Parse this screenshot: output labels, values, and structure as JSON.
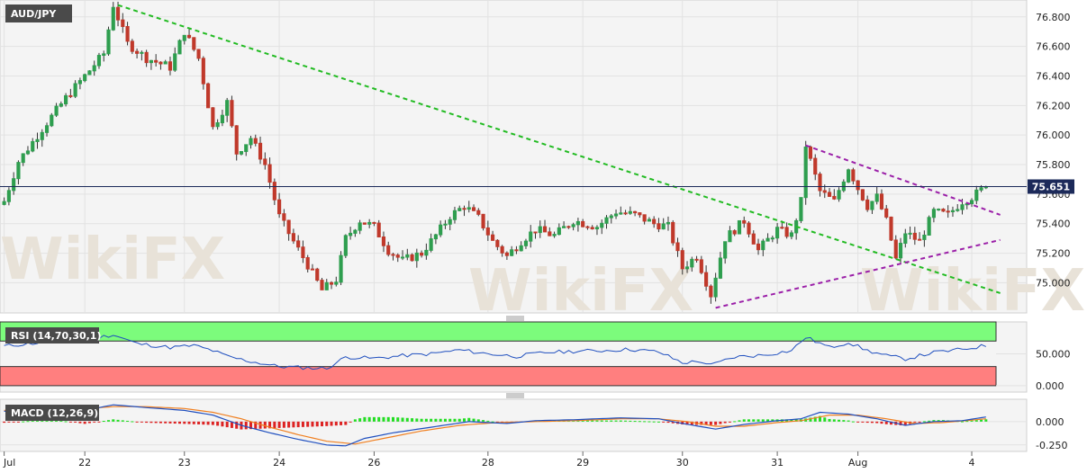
{
  "colors": {
    "bull": "#2e9e4f",
    "bear": "#c0392b",
    "trend_down": "#22bb22",
    "triangle": "#9b1fa8",
    "price_line": "#1c2a5a",
    "rsi_line": "#1f4fbf",
    "rsi_overbought": "#7cfc7c",
    "rsi_oversold": "#ff7f7f",
    "macd_line": "#1f4fbf",
    "signal_line": "#f07f1f",
    "hist_pos": "#22dd22",
    "hist_neg": "#dd2222",
    "label_bg": "#4a4a4a"
  },
  "watermark": "WikiFX",
  "chart_data": [
    {
      "type": "candlestick",
      "title": "AUD/JPY",
      "last_price_label": "75.651",
      "last_price": 75.651,
      "ylim": [
        74.82,
        76.89
      ],
      "yticks": [
        75.0,
        75.2,
        75.4,
        75.6,
        75.8,
        76.0,
        76.2,
        76.4,
        76.6,
        76.8
      ],
      "ytick_labels": [
        "75.000",
        "75.200",
        "75.400",
        "75.600",
        "75.800",
        "76.000",
        "76.200",
        "76.400",
        "76.600",
        "76.800"
      ],
      "x_labels": [
        "Jul",
        "22",
        "23",
        "24",
        "26",
        "28",
        "29",
        "30",
        "31",
        "Aug",
        "4"
      ],
      "x_label_bars": [
        0,
        17,
        38,
        58,
        78,
        102,
        122,
        143,
        163,
        180,
        204
      ],
      "bars_total": 210,
      "ohlc_anchors": [
        [
          0,
          75.55
        ],
        [
          3,
          75.82
        ],
        [
          8,
          76.04
        ],
        [
          13,
          76.25
        ],
        [
          17,
          76.4
        ],
        [
          21,
          76.55
        ],
        [
          23,
          76.88
        ],
        [
          26,
          76.62
        ],
        [
          30,
          76.52
        ],
        [
          35,
          76.46
        ],
        [
          38,
          76.7
        ],
        [
          41,
          76.52
        ],
        [
          44,
          76.05
        ],
        [
          47,
          76.22
        ],
        [
          49,
          75.88
        ],
        [
          52,
          75.98
        ],
        [
          55,
          75.8
        ],
        [
          58,
          75.45
        ],
        [
          61,
          75.28
        ],
        [
          64,
          75.12
        ],
        [
          67,
          74.95
        ],
        [
          70,
          75.02
        ],
        [
          72,
          75.3
        ],
        [
          75,
          75.42
        ],
        [
          78,
          75.38
        ],
        [
          81,
          75.22
        ],
        [
          84,
          75.15
        ],
        [
          88,
          75.2
        ],
        [
          91,
          75.32
        ],
        [
          94,
          75.45
        ],
        [
          97,
          75.52
        ],
        [
          100,
          75.44
        ],
        [
          103,
          75.28
        ],
        [
          106,
          75.18
        ],
        [
          109,
          75.28
        ],
        [
          112,
          75.36
        ],
        [
          116,
          75.32
        ],
        [
          120,
          75.42
        ],
        [
          125,
          75.38
        ],
        [
          129,
          75.48
        ],
        [
          133,
          75.46
        ],
        [
          137,
          75.4
        ],
        [
          140,
          75.38
        ],
        [
          143,
          75.1
        ],
        [
          146,
          75.18
        ],
        [
          149,
          74.92
        ],
        [
          152,
          75.3
        ],
        [
          156,
          75.42
        ],
        [
          159,
          75.22
        ],
        [
          163,
          75.36
        ],
        [
          166,
          75.32
        ],
        [
          168,
          75.55
        ],
        [
          169,
          75.93
        ],
        [
          172,
          75.62
        ],
        [
          175,
          75.55
        ],
        [
          178,
          75.78
        ],
        [
          180,
          75.64
        ],
        [
          182,
          75.52
        ],
        [
          184,
          75.58
        ],
        [
          186,
          75.42
        ],
        [
          188,
          75.16
        ],
        [
          190,
          75.34
        ],
        [
          193,
          75.28
        ],
        [
          196,
          75.48
        ],
        [
          199,
          75.46
        ],
        [
          202,
          75.55
        ],
        [
          204,
          75.58
        ],
        [
          207,
          75.651
        ]
      ],
      "trendlines": [
        {
          "name": "downtrend",
          "style": "green-dashed",
          "points": [
            [
              24,
              76.88
            ],
            [
              210,
              74.93
            ]
          ]
        },
        {
          "name": "triangle-upper",
          "style": "purple-dashed",
          "points": [
            [
              169,
              75.93
            ],
            [
              210,
              75.46
            ]
          ]
        },
        {
          "name": "triangle-lower",
          "style": "purple-dashed",
          "points": [
            [
              150,
              74.83
            ],
            [
              210,
              75.29
            ]
          ]
        }
      ]
    },
    {
      "type": "line",
      "title": "RSI (14,70,30,1)",
      "ylim": [
        -10,
        100
      ],
      "yticks": [
        0,
        50
      ],
      "ytick_labels": [
        "0.000",
        "50.000"
      ],
      "overbought": 70,
      "oversold": 30,
      "anchors": [
        [
          0,
          62
        ],
        [
          8,
          68
        ],
        [
          17,
          72
        ],
        [
          23,
          80
        ],
        [
          28,
          66
        ],
        [
          35,
          60
        ],
        [
          40,
          63
        ],
        [
          44,
          55
        ],
        [
          47,
          46
        ],
        [
          52,
          38
        ],
        [
          58,
          30
        ],
        [
          64,
          28
        ],
        [
          68,
          27
        ],
        [
          72,
          45
        ],
        [
          78,
          43
        ],
        [
          84,
          47
        ],
        [
          90,
          50
        ],
        [
          96,
          56
        ],
        [
          102,
          50
        ],
        [
          108,
          46
        ],
        [
          114,
          52
        ],
        [
          120,
          54
        ],
        [
          126,
          55
        ],
        [
          132,
          57
        ],
        [
          138,
          53
        ],
        [
          143,
          36
        ],
        [
          147,
          38
        ],
        [
          149,
          32
        ],
        [
          154,
          45
        ],
        [
          160,
          48
        ],
        [
          166,
          55
        ],
        [
          169,
          76
        ],
        [
          174,
          60
        ],
        [
          178,
          68
        ],
        [
          182,
          55
        ],
        [
          186,
          47
        ],
        [
          190,
          42
        ],
        [
          196,
          52
        ],
        [
          202,
          57
        ],
        [
          207,
          63
        ]
      ]
    },
    {
      "type": "line",
      "title": "MACD (12,26,9)",
      "ylim": [
        -0.3,
        0.22
      ],
      "yticks": [
        0,
        -0.25
      ],
      "ytick_labels": [
        "0.000",
        "-0.250"
      ],
      "macd_anchors": [
        [
          0,
          0.11
        ],
        [
          10,
          0.15
        ],
        [
          17,
          0.12
        ],
        [
          23,
          0.18
        ],
        [
          30,
          0.15
        ],
        [
          38,
          0.12
        ],
        [
          44,
          0.07
        ],
        [
          50,
          -0.04
        ],
        [
          56,
          -0.12
        ],
        [
          62,
          -0.19
        ],
        [
          68,
          -0.25
        ],
        [
          72,
          -0.26
        ],
        [
          76,
          -0.18
        ],
        [
          82,
          -0.12
        ],
        [
          90,
          -0.06
        ],
        [
          98,
          0.0
        ],
        [
          106,
          -0.02
        ],
        [
          112,
          0.01
        ],
        [
          120,
          0.02
        ],
        [
          130,
          0.04
        ],
        [
          138,
          0.03
        ],
        [
          143,
          -0.02
        ],
        [
          150,
          -0.08
        ],
        [
          156,
          -0.03
        ],
        [
          163,
          0.01
        ],
        [
          168,
          0.03
        ],
        [
          172,
          0.1
        ],
        [
          178,
          0.08
        ],
        [
          184,
          0.03
        ],
        [
          190,
          -0.04
        ],
        [
          196,
          0.0
        ],
        [
          202,
          0.01
        ],
        [
          207,
          0.05
        ]
      ],
      "signal_anchors": [
        [
          0,
          0.12
        ],
        [
          10,
          0.13
        ],
        [
          17,
          0.14
        ],
        [
          23,
          0.16
        ],
        [
          30,
          0.16
        ],
        [
          38,
          0.14
        ],
        [
          44,
          0.1
        ],
        [
          50,
          0.03
        ],
        [
          56,
          -0.06
        ],
        [
          62,
          -0.14
        ],
        [
          68,
          -0.21
        ],
        [
          74,
          -0.24
        ],
        [
          80,
          -0.18
        ],
        [
          88,
          -0.1
        ],
        [
          96,
          -0.04
        ],
        [
          104,
          -0.01
        ],
        [
          112,
          0.0
        ],
        [
          120,
          0.01
        ],
        [
          130,
          0.03
        ],
        [
          138,
          0.03
        ],
        [
          144,
          0.0
        ],
        [
          150,
          -0.05
        ],
        [
          156,
          -0.05
        ],
        [
          163,
          -0.01
        ],
        [
          168,
          0.01
        ],
        [
          174,
          0.07
        ],
        [
          180,
          0.07
        ],
        [
          186,
          0.03
        ],
        [
          192,
          -0.02
        ],
        [
          198,
          -0.01
        ],
        [
          207,
          0.03
        ]
      ]
    }
  ]
}
